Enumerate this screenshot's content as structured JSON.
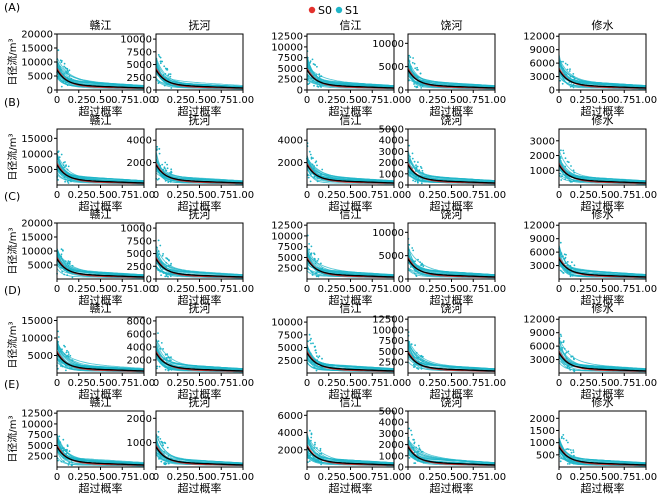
{
  "legend": {
    "items": [
      {
        "label": "S0",
        "color": "#e3312d"
      },
      {
        "label": "S1",
        "color": "#1fb5c8"
      }
    ]
  },
  "colors": {
    "median_line": "#000000",
    "frame": "#000000"
  },
  "chart_data": {
    "type": "line",
    "xlabel": "超过概率",
    "ylabel": "日径流/m³",
    "xlim": [
      0,
      1
    ],
    "xticks": [
      "0",
      "0.25",
      "0.50",
      "0.75",
      "1.00"
    ],
    "rows": [
      {
        "label": "(A)",
        "panels": [
          {
            "title": "赣江",
            "ylim": [
              0,
              20000
            ],
            "yticks": [
              0,
              5000,
              10000,
              15000,
              20000
            ]
          },
          {
            "title": "抚河",
            "ylim": [
              0,
              11000
            ],
            "yticks": [
              0,
              2500,
              5000,
              7500,
              10000
            ]
          },
          {
            "title": "信江",
            "ylim": [
              0,
              13000
            ],
            "yticks": [
              0,
              2500,
              5000,
              7500,
              10000,
              12500
            ]
          },
          {
            "title": "饶河",
            "ylim": [
              0,
              12000
            ],
            "yticks": [
              0,
              5000,
              10000
            ]
          },
          {
            "title": "修水",
            "ylim": [
              0,
              12500
            ],
            "yticks": [
              0,
              3000,
              6000,
              9000,
              12000
            ]
          }
        ]
      },
      {
        "label": "(B)",
        "panels": [
          {
            "title": "赣江",
            "ylim": [
              0,
              18000
            ],
            "yticks": [
              5000,
              10000,
              15000
            ]
          },
          {
            "title": "抚河",
            "ylim": [
              0,
              5000
            ],
            "yticks": [
              2000,
              4000
            ]
          },
          {
            "title": "信江",
            "ylim": [
              0,
              5000
            ],
            "yticks": [
              2000,
              4000
            ]
          },
          {
            "title": "饶河",
            "ylim": [
              0,
              5000
            ],
            "yticks": [
              0,
              1000,
              2000,
              3000,
              4000,
              5000
            ]
          },
          {
            "title": "修水",
            "ylim": [
              0,
              3800
            ],
            "yticks": [
              1000,
              2000,
              3000
            ]
          }
        ]
      },
      {
        "label": "(C)",
        "panels": [
          {
            "title": "赣江",
            "ylim": [
              0,
              20000
            ],
            "yticks": [
              5000,
              10000,
              15000,
              20000
            ]
          },
          {
            "title": "抚河",
            "ylim": [
              0,
              11000
            ],
            "yticks": [
              0,
              2500,
              5000,
              7500,
              10000
            ]
          },
          {
            "title": "信江",
            "ylim": [
              0,
              13000
            ],
            "yticks": [
              2500,
              5000,
              7500,
              10000,
              12500
            ]
          },
          {
            "title": "饶河",
            "ylim": [
              0,
              12000
            ],
            "yticks": [
              0,
              5000,
              10000
            ]
          },
          {
            "title": "修水",
            "ylim": [
              0,
              12500
            ],
            "yticks": [
              3000,
              6000,
              9000,
              12000
            ]
          }
        ]
      },
      {
        "label": "(D)",
        "panels": [
          {
            "title": "赣江",
            "ylim": [
              0,
              16000
            ],
            "yticks": [
              5000,
              10000,
              15000
            ]
          },
          {
            "title": "抚河",
            "ylim": [
              0,
              8600
            ],
            "yticks": [
              2000,
              4000,
              6000,
              8000
            ]
          },
          {
            "title": "信江",
            "ylim": [
              0,
              11000
            ],
            "yticks": [
              2500,
              5000,
              7500,
              10000
            ]
          },
          {
            "title": "饶河",
            "ylim": [
              0,
              13000
            ],
            "yticks": [
              2500,
              5000,
              7500,
              10000,
              12500
            ]
          },
          {
            "title": "修水",
            "ylim": [
              0,
              12500
            ],
            "yticks": [
              3000,
              6000,
              9000,
              12000
            ]
          }
        ]
      },
      {
        "label": "(E)",
        "panels": [
          {
            "title": "赣江",
            "ylim": [
              0,
              13000
            ],
            "yticks": [
              2500,
              5000,
              7500,
              10000,
              12500
            ]
          },
          {
            "title": "抚河",
            "ylim": [
              0,
              2300
            ],
            "yticks": [
              1000,
              2000
            ]
          },
          {
            "title": "信江",
            "ylim": [
              0,
              6500
            ],
            "yticks": [
              2000,
              4000,
              6000
            ]
          },
          {
            "title": "饶河",
            "ylim": [
              0,
              5000
            ],
            "yticks": [
              0,
              1000,
              2000,
              3000,
              4000,
              5000
            ]
          },
          {
            "title": "修水",
            "ylim": [
              0,
              2300
            ],
            "yticks": [
              500,
              1000,
              1500,
              2000
            ]
          }
        ]
      }
    ]
  }
}
